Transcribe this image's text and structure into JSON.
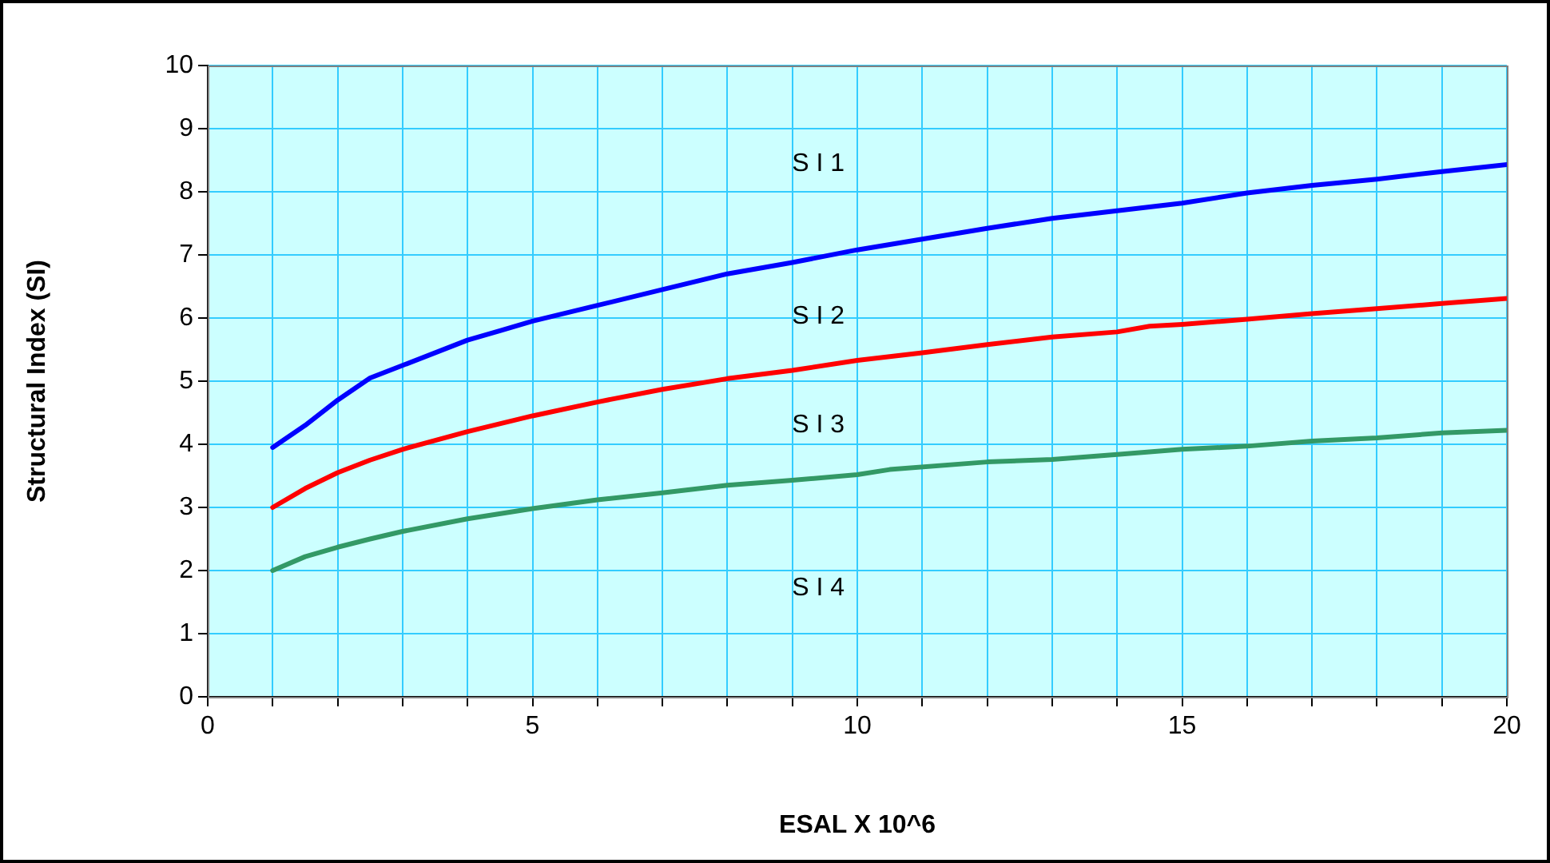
{
  "chart_data": {
    "type": "line",
    "xlabel": "ESAL X 10^6",
    "ylabel": "Structural Index (SI)",
    "xlim": [
      0,
      20
    ],
    "xticks": [
      0,
      {
        "value": 1,
        "label": null
      },
      {
        "value": 2,
        "label": null
      },
      {
        "value": 3,
        "label": null
      },
      {
        "value": 4,
        "label": null
      },
      5,
      {
        "value": 6,
        "label": null
      },
      {
        "value": 7,
        "label": null
      },
      {
        "value": 8,
        "label": null
      },
      {
        "value": 9,
        "label": null
      },
      10,
      {
        "value": 11,
        "label": null
      },
      {
        "value": 12,
        "label": null
      },
      {
        "value": 13,
        "label": null
      },
      {
        "value": 14,
        "label": null
      },
      15,
      {
        "value": 16,
        "label": null
      },
      {
        "value": 17,
        "label": null
      },
      {
        "value": 18,
        "label": null
      },
      {
        "value": 19,
        "label": null
      },
      20
    ],
    "ylim": [
      0,
      10
    ],
    "yticks": [
      0,
      1,
      2,
      3,
      4,
      5,
      6,
      7,
      8,
      9,
      10
    ],
    "grid": true,
    "legend": false,
    "marker": "none",
    "line_style": "solid",
    "series": [
      {
        "color": "#0000ff",
        "x": [
          1,
          1.5,
          2,
          2.5,
          3,
          4,
          4.5,
          5,
          6,
          7,
          8,
          9,
          10,
          11,
          12,
          13,
          14,
          15,
          16,
          17,
          18,
          19,
          20
        ],
        "values": [
          3.95,
          4.3,
          4.7,
          5.05,
          5.25,
          5.65,
          5.8,
          5.95,
          6.2,
          6.45,
          6.7,
          6.88,
          7.08,
          7.25,
          7.42,
          7.58,
          7.7,
          7.82,
          7.98,
          8.1,
          8.2,
          8.32,
          8.43
        ]
      },
      {
        "color": "#ff0000",
        "x": [
          1,
          1.5,
          2,
          2.5,
          3,
          4,
          5,
          6,
          7,
          8,
          9,
          10,
          11,
          12,
          13,
          14,
          14.5,
          15,
          16,
          17,
          18,
          19,
          20
        ],
        "values": [
          3.0,
          3.3,
          3.55,
          3.75,
          3.92,
          4.2,
          4.45,
          4.67,
          4.87,
          5.04,
          5.17,
          5.33,
          5.45,
          5.58,
          5.7,
          5.78,
          5.87,
          5.9,
          5.98,
          6.07,
          6.15,
          6.23,
          6.31
        ]
      },
      {
        "color": "#339966",
        "x": [
          1,
          1.5,
          2,
          2.5,
          3,
          4,
          5,
          6,
          7,
          8,
          9,
          10,
          10.5,
          12,
          13,
          14,
          15,
          16,
          17,
          18,
          19,
          20
        ],
        "values": [
          2.0,
          2.22,
          2.37,
          2.5,
          2.62,
          2.82,
          2.98,
          3.12,
          3.23,
          3.35,
          3.43,
          3.52,
          3.6,
          3.72,
          3.76,
          3.84,
          3.92,
          3.97,
          4.05,
          4.1,
          4.18,
          4.22
        ]
      }
    ],
    "annotations": [
      "S I 1",
      "S I 2",
      "S I 3",
      "S I 4"
    ]
  }
}
